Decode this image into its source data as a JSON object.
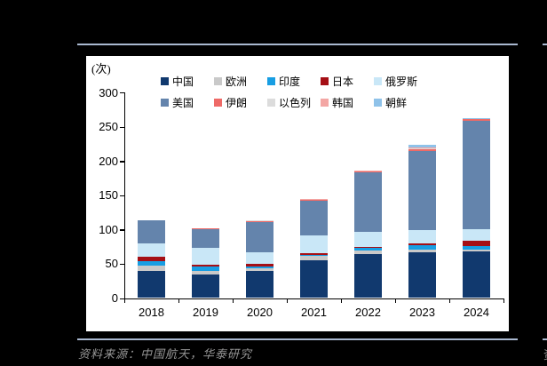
{
  "page": {
    "background_color": "#000000",
    "divider_color": "#a9b8d0",
    "panel_color": "#ffffff"
  },
  "source_note": {
    "label": "资料来源：中国航天，华泰研究",
    "right_fragment": "资"
  },
  "chart_data": {
    "type": "bar",
    "stacked": true,
    "title": "",
    "unit_label": "(次)",
    "xlabel": "",
    "ylabel": "(次)",
    "categories": [
      "2018",
      "2019",
      "2020",
      "2021",
      "2022",
      "2023",
      "2024"
    ],
    "series": [
      {
        "name": "中国",
        "color": "#11396e",
        "values": [
          39,
          34,
          39,
          55,
          64,
          67,
          68
        ]
      },
      {
        "name": "欧洲",
        "color": "#c9c9c9",
        "values": [
          8,
          6,
          5,
          6,
          5,
          3,
          3
        ]
      },
      {
        "name": "印度",
        "color": "#189ee3",
        "values": [
          7,
          6,
          2,
          2,
          5,
          7,
          5
        ]
      },
      {
        "name": "日本",
        "color": "#a50f15",
        "values": [
          6,
          2,
          4,
          3,
          1,
          3,
          7
        ]
      },
      {
        "name": "俄罗斯",
        "color": "#c9e7f7",
        "values": [
          20,
          25,
          17,
          25,
          21,
          19,
          17
        ]
      },
      {
        "name": "美国",
        "color": "#6484ac",
        "values": [
          34,
          27,
          44,
          51,
          87,
          116,
          158
        ]
      },
      {
        "name": "伊朗",
        "color": "#ee6a67",
        "values": [
          0,
          2,
          2,
          2,
          2,
          2,
          4
        ]
      },
      {
        "name": "以色列",
        "color": "#dcdcdc",
        "values": [
          0,
          0,
          1,
          0,
          0,
          1,
          0
        ]
      },
      {
        "name": "韩国",
        "color": "#f3a6a4",
        "values": [
          0,
          0,
          0,
          1,
          1,
          2,
          0
        ]
      },
      {
        "name": "朝鲜",
        "color": "#8fc2e9",
        "values": [
          0,
          0,
          0,
          0,
          0,
          3,
          1
        ]
      }
    ],
    "totals": [
      114,
      102,
      114,
      145,
      186,
      223,
      263
    ],
    "ylim": [
      0,
      300
    ],
    "yticks": [
      0,
      50,
      100,
      150,
      200,
      250,
      300
    ],
    "legend_position": "top",
    "legend_rows": [
      [
        0,
        1,
        2,
        3,
        4
      ],
      [
        5,
        6,
        7,
        8,
        9
      ]
    ],
    "grid": false
  }
}
